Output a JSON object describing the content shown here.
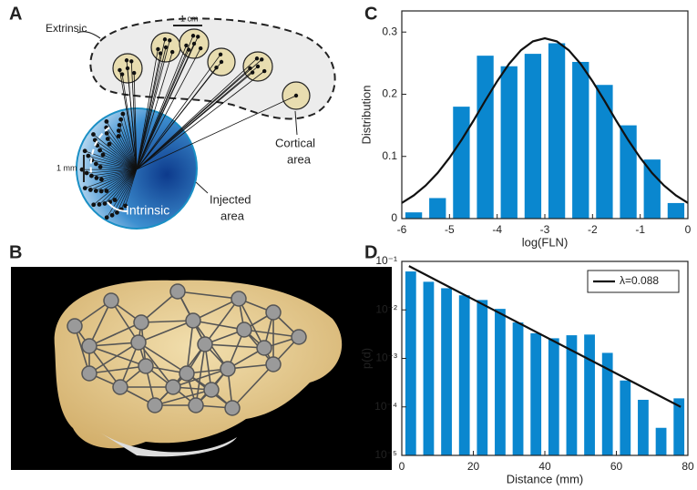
{
  "panels": {
    "A": {
      "label": "A",
      "extrinsic": "Extrinsic",
      "scale_cm": "1 cm",
      "cortical_area": [
        "Cortical",
        "area"
      ],
      "scale_mm": "1 mm",
      "intrinsic": "Intrinsic",
      "injected_area": [
        "Injected",
        "area"
      ]
    },
    "B": {
      "label": "B"
    }
  },
  "chart_data": [
    {
      "type": "histogram",
      "label": "C",
      "xlabel": "log(FLN)",
      "ylabel": "Distribution",
      "color": "#0a87cf",
      "bins": [
        -6,
        -5.5,
        -5,
        -4.5,
        -4,
        -3.5,
        -3,
        -2.5,
        -2,
        -1.5,
        -1,
        -0.5,
        0
      ],
      "values": [
        0.01,
        0.033,
        0.18,
        0.262,
        0.245,
        0.265,
        0.282,
        0.252,
        0.215,
        0.15,
        0.095,
        0.025
      ],
      "fit": {
        "type": "line",
        "color": "#111",
        "x": [
          -6,
          -5.75,
          -5.5,
          -5.25,
          -5,
          -4.75,
          -4.5,
          -4.25,
          -4,
          -3.75,
          -3.5,
          -3.25,
          -3,
          -2.75,
          -2.5,
          -2.25,
          -2,
          -1.75,
          -1.5,
          -1.25,
          -1,
          -0.75,
          -0.5,
          -0.25,
          0
        ],
        "values": [
          0.0251,
          0.0372,
          0.0531,
          0.0732,
          0.0978,
          0.1261,
          0.1571,
          0.1897,
          0.2209,
          0.2489,
          0.2709,
          0.2851,
          0.29,
          0.2851,
          0.2709,
          0.2489,
          0.2209,
          0.1897,
          0.1571,
          0.1261,
          0.0978,
          0.0732,
          0.0531,
          0.0372,
          0.0251
        ]
      },
      "xlim": [
        -6,
        0
      ],
      "ylim": [
        0,
        0.334
      ],
      "xticks": [
        -6,
        -5,
        -4,
        -3,
        -2,
        -1,
        0
      ],
      "yticks": [
        0,
        0.1,
        0.2,
        0.3
      ]
    },
    {
      "type": "bar",
      "label": "D",
      "xlabel": "Distance (mm)",
      "ylabel": "p(d)",
      "color": "#0a87cf",
      "log_y": true,
      "legend": "upper right",
      "x": [
        2.5,
        7.5,
        12.5,
        17.5,
        22.5,
        27.5,
        32.5,
        37.5,
        42.5,
        47.5,
        52.5,
        57.5,
        62.5,
        67.5,
        72.5,
        77.5
      ],
      "values": [
        0.062,
        0.038,
        0.028,
        0.02,
        0.016,
        0.0105,
        0.0055,
        0.0033,
        0.0026,
        0.003,
        0.0031,
        0.0013,
        0.00035,
        0.00014,
        3.7e-05,
        0.00015
      ],
      "series": [
        {
          "name": "λ=0.088",
          "type": "line",
          "color": "#111",
          "x": [
            2,
            78
          ],
          "values": [
            0.08,
            0.0001
          ]
        }
      ],
      "xlim": [
        0,
        80
      ],
      "ylim": [
        1e-05,
        0.1
      ],
      "xticks": [
        0,
        20,
        40,
        60,
        80
      ],
      "yticks": [
        {
          "value": 1e-05,
          "label": "10⁻⁵"
        },
        {
          "value": 0.0001,
          "label": "10⁻⁴"
        },
        {
          "value": 0.001,
          "label": "10⁻³"
        },
        {
          "value": 0.01,
          "label": "10⁻²"
        },
        {
          "value": 0.1,
          "label": "10⁻¹"
        }
      ]
    }
  ]
}
